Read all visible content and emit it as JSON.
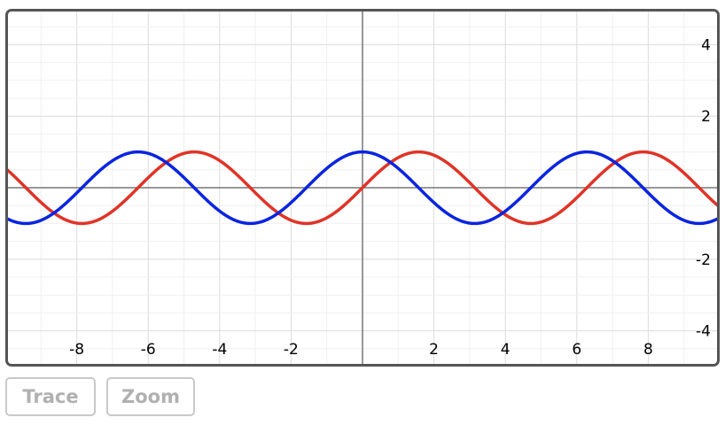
{
  "chart_data": {
    "type": "line",
    "title": "",
    "xlabel": "",
    "ylabel": "",
    "xlim": [
      -10,
      10
    ],
    "ylim": [
      -5,
      5
    ],
    "grid": true,
    "x_ticks": [
      -8,
      -6,
      -4,
      -2,
      2,
      4,
      6,
      8
    ],
    "y_ticks": [
      -4,
      -2,
      2,
      4
    ],
    "x_tick_labels": [
      "-8",
      "-6",
      "-4",
      "-2",
      "2",
      "4",
      "6",
      "8"
    ],
    "y_tick_labels": [
      "-4",
      "-2",
      "2",
      "4"
    ],
    "series": [
      {
        "function": "sin",
        "color": "#e03327"
      },
      {
        "function": "cos",
        "color": "#0a24e0"
      }
    ]
  },
  "toolbar": {
    "trace_label": "Trace",
    "zoom_label": "Zoom"
  }
}
